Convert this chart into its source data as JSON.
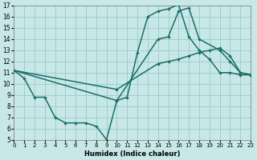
{
  "xlabel": "Humidex (Indice chaleur)",
  "xlim": [
    0,
    23
  ],
  "ylim": [
    5,
    17
  ],
  "xticks": [
    0,
    1,
    2,
    3,
    4,
    5,
    6,
    7,
    8,
    9,
    10,
    11,
    12,
    13,
    14,
    15,
    16,
    17,
    18,
    19,
    20,
    21,
    22,
    23
  ],
  "yticks": [
    5,
    6,
    7,
    8,
    9,
    10,
    11,
    12,
    13,
    14,
    15,
    16,
    17
  ],
  "bg_color": "#c8e8e8",
  "grid_color": "#9ecece",
  "line_color": "#1a6e6a",
  "series": [
    {
      "x": [
        0,
        1,
        2,
        3,
        4,
        5,
        6,
        7,
        8,
        9,
        10,
        11,
        12,
        13,
        14,
        15,
        16,
        17,
        18,
        19,
        20,
        21,
        22,
        23
      ],
      "y": [
        11.2,
        10.5,
        8.8,
        8.8,
        7.0,
        6.5,
        6.5,
        6.5,
        6.2,
        5.0,
        8.5,
        8.8,
        12.8,
        16.0,
        16.5,
        16.7,
        17.1,
        14.2,
        13.0,
        12.2,
        11.0,
        11.0,
        10.8,
        10.8
      ]
    },
    {
      "x": [
        0,
        10,
        14,
        15,
        16,
        17,
        18,
        20,
        21,
        22,
        23
      ],
      "y": [
        11.2,
        8.5,
        14.0,
        14.2,
        16.5,
        16.8,
        14.0,
        13.0,
        12.0,
        11.0,
        10.8
      ]
    },
    {
      "x": [
        0,
        10,
        14,
        15,
        16,
        17,
        18,
        19,
        20,
        21,
        22,
        23
      ],
      "y": [
        11.2,
        9.5,
        11.8,
        12.0,
        12.2,
        12.5,
        12.8,
        13.0,
        13.2,
        12.5,
        11.0,
        10.8
      ]
    }
  ]
}
